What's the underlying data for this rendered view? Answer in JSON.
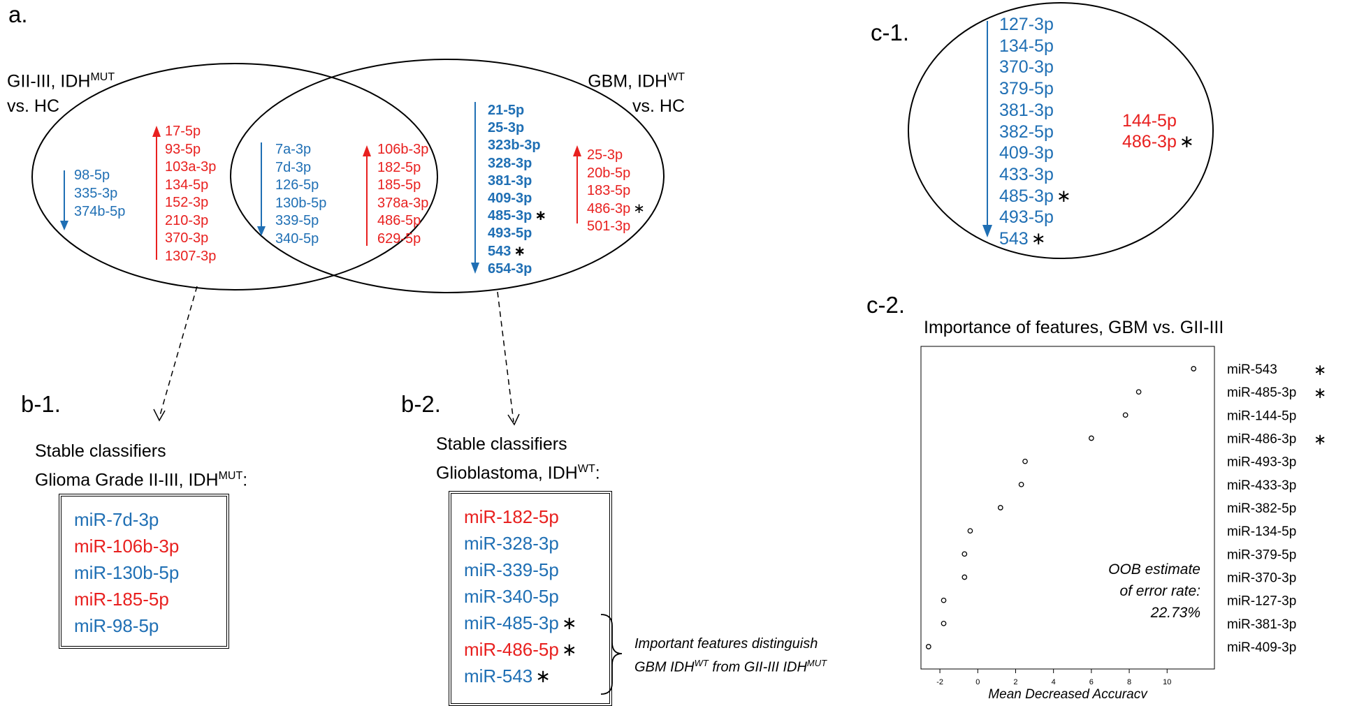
{
  "colors": {
    "down": "#1f6fb4",
    "up": "#e8201f",
    "ink": "#000000"
  },
  "panel_a": {
    "label": "a.",
    "left_group": {
      "line1": "GII-III, IDH",
      "sup": "MUT",
      "line2": "vs. HC"
    },
    "right_group": {
      "line1": "GBM, IDH",
      "sup": "WT",
      "line2": "vs. HC"
    },
    "left_only_down": [
      "98-5p",
      "335-3p",
      "374b-5p"
    ],
    "left_only_up": [
      "17-5p",
      "93-5p",
      "103a-3p",
      "134-5p",
      "152-3p",
      "210-3p",
      "370-3p",
      "1307-3p"
    ],
    "shared_down": [
      "7a-3p",
      "7d-3p",
      "126-5p",
      "130b-5p",
      "339-5p",
      "340-5p"
    ],
    "shared_up": [
      "106b-3p",
      "182-5p",
      "185-5p",
      "378a-3p",
      "486-5p",
      "629-5p"
    ],
    "right_only_down": [
      {
        "t": "21-5p",
        "s": ""
      },
      {
        "t": "25-3p",
        "s": ""
      },
      {
        "t": "323b-3p",
        "s": ""
      },
      {
        "t": "328-3p",
        "s": ""
      },
      {
        "t": "381-3p",
        "s": ""
      },
      {
        "t": "409-3p",
        "s": ""
      },
      {
        "t": "485-3p",
        "s": "∗"
      },
      {
        "t": "493-5p",
        "s": ""
      },
      {
        "t": "543",
        "s": "∗"
      },
      {
        "t": "654-3p",
        "s": ""
      }
    ],
    "right_only_up": [
      {
        "t": "25-3p",
        "s": ""
      },
      {
        "t": "20b-5p",
        "s": ""
      },
      {
        "t": "183-5p",
        "s": ""
      },
      {
        "t": "486-3p",
        "s": "∗"
      },
      {
        "t": "501-3p",
        "s": ""
      }
    ]
  },
  "panel_b1": {
    "label": "b-1.",
    "title1": "Stable classifiers",
    "title2": "Glioma Grade II-III, IDH",
    "sup": "MUT",
    "suffix": ":",
    "items": [
      {
        "t": "miR-7d-3p",
        "c": "blue",
        "s": ""
      },
      {
        "t": "miR-106b-3p",
        "c": "red",
        "s": ""
      },
      {
        "t": "miR-130b-5p",
        "c": "blue",
        "s": ""
      },
      {
        "t": "miR-185-5p",
        "c": "red",
        "s": ""
      },
      {
        "t": "miR-98-5p",
        "c": "blue",
        "s": ""
      }
    ]
  },
  "panel_b2": {
    "label": "b-2.",
    "title1": "Stable classifiers",
    "title2": "Glioblastoma, IDH",
    "sup": "WT",
    "suffix": ":",
    "items": [
      {
        "t": "miR-182-5p",
        "c": "red",
        "s": ""
      },
      {
        "t": "miR-328-3p",
        "c": "blue",
        "s": ""
      },
      {
        "t": "miR-339-5p",
        "c": "blue",
        "s": ""
      },
      {
        "t": "miR-340-5p",
        "c": "blue",
        "s": ""
      },
      {
        "t": "miR-485-3p",
        "c": "blue",
        "s": "∗"
      },
      {
        "t": "miR-486-5p",
        "c": "red",
        "s": "∗"
      },
      {
        "t": "miR-543",
        "c": "blue",
        "s": "∗"
      }
    ],
    "note_line1": "Important features distinguish",
    "note_line2a": "GBM IDH",
    "note_sup1": "WT",
    "note_line2b": " from GII-III IDH",
    "note_sup2": "MUT"
  },
  "panel_c1": {
    "label": "c-1.",
    "down": [
      {
        "t": "127-3p",
        "s": ""
      },
      {
        "t": "134-5p",
        "s": ""
      },
      {
        "t": "370-3p",
        "s": ""
      },
      {
        "t": "379-5p",
        "s": ""
      },
      {
        "t": "381-3p",
        "s": ""
      },
      {
        "t": "382-5p",
        "s": ""
      },
      {
        "t": "409-3p",
        "s": ""
      },
      {
        "t": "433-3p",
        "s": ""
      },
      {
        "t": "485-3p",
        "s": "∗"
      },
      {
        "t": "493-5p",
        "s": ""
      },
      {
        "t": "543",
        "s": "∗"
      }
    ],
    "up": [
      {
        "t": "144-5p",
        "s": ""
      },
      {
        "t": "486-3p",
        "s": "∗"
      }
    ]
  },
  "panel_c2": {
    "label": "c-2.",
    "title": "Importance of features, GBM vs. GII-III",
    "xlabel": "Mean Decreased Accuracy",
    "annotation": [
      "OOB estimate",
      "of error rate:",
      "22.73%"
    ]
  },
  "chart_data": {
    "type": "scatter",
    "title": "Importance of features, GBM vs. GII-III",
    "xlabel": "Mean Decreased Accuracy",
    "ylabel": "",
    "x_ticks": [
      -2,
      0,
      2,
      4,
      6,
      8,
      10
    ],
    "xlim": [
      -3,
      12.5
    ],
    "grid": false,
    "categories": [
      {
        "t": "miR-543",
        "s": "∗"
      },
      {
        "t": "miR-485-3p",
        "s": "∗"
      },
      {
        "t": "miR-144-5p",
        "s": ""
      },
      {
        "t": "miR-486-3p",
        "s": "∗"
      },
      {
        "t": "miR-493-3p",
        "s": ""
      },
      {
        "t": "miR-433-3p",
        "s": ""
      },
      {
        "t": "miR-382-5p",
        "s": ""
      },
      {
        "t": "miR-134-5p",
        "s": ""
      },
      {
        "t": "miR-379-5p",
        "s": ""
      },
      {
        "t": "miR-370-3p",
        "s": ""
      },
      {
        "t": "miR-127-3p",
        "s": ""
      },
      {
        "t": "miR-381-3p",
        "s": ""
      },
      {
        "t": "miR-409-3p",
        "s": ""
      }
    ],
    "values": [
      11.4,
      8.5,
      7.8,
      6.0,
      2.5,
      2.3,
      1.2,
      -0.4,
      -0.7,
      -0.7,
      -1.8,
      -1.8,
      -2.6
    ]
  }
}
